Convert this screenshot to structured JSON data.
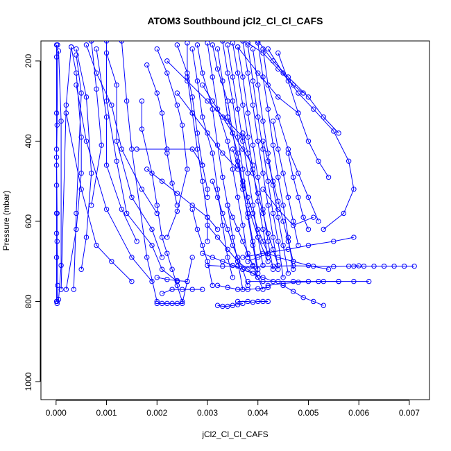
{
  "chart_data": {
    "type": "line",
    "title": "ATOM3 Southbound jCl2_Cl_Cl_CAFS",
    "xlabel": "jCl2_Cl_Cl_CAFS",
    "ylabel": "Pressure (mbar)",
    "xlim": [
      -0.0003,
      0.0074
    ],
    "ylim": [
      1045,
      150
    ],
    "y_reversed": true,
    "x_ticks": [
      0.0,
      0.001,
      0.002,
      0.003,
      0.004,
      0.005,
      0.006,
      0.007
    ],
    "x_tick_labels": [
      "0.000",
      "0.001",
      "0.002",
      "0.003",
      "0.004",
      "0.005",
      "0.006",
      "0.007"
    ],
    "y_ticks": [
      200,
      400,
      600,
      800,
      1000
    ],
    "y_tick_labels": [
      "200",
      "400",
      "600",
      "800",
      "1000"
    ],
    "grid": false,
    "color": "#0000ff",
    "marker": "open-circle",
    "series": [
      {
        "x": [
          1e-05,
          1e-05,
          1e-05,
          1e-05,
          1e-05,
          1e-05,
          1e-05,
          1e-05,
          1e-05,
          1e-05
        ],
        "y": [
          160,
          190,
          330,
          420,
          460,
          510,
          580,
          630,
          690,
          800
        ]
      },
      {
        "x": [
          3e-05,
          2e-05,
          1e-05,
          2e-05,
          2e-05,
          3e-05,
          2e-05
        ],
        "y": [
          160,
          360,
          440,
          580,
          650,
          760,
          800
        ]
      },
      {
        "x": [
          5e-05,
          0.0001,
          0.0001,
          5e-05,
          2e-05
        ],
        "y": [
          175,
          350,
          710,
          795,
          805
        ]
      },
      {
        "x": [
          0.0003,
          0.0002,
          0.0001
        ],
        "y": [
          165,
          310,
          770
        ]
      },
      {
        "x": [
          0.0003,
          0.0004,
          0.0005,
          0.0005,
          0.0004,
          0.0002
        ],
        "y": [
          165,
          230,
          390,
          480,
          620,
          770
        ]
      },
      {
        "x": [
          0.0004,
          0.0005,
          0.0004,
          0.00035
        ],
        "y": [
          185,
          280,
          580,
          770
        ]
      },
      {
        "x": [
          0.0006,
          0.0008,
          0.0011,
          0.0013,
          0.0017,
          0.002
        ],
        "y": [
          160,
          230,
          310,
          420,
          520,
          580
        ]
      },
      {
        "x": [
          0.0004,
          0.0006,
          0.0007,
          0.0006,
          0.0005
        ],
        "y": [
          170,
          290,
          480,
          640,
          720
        ]
      },
      {
        "x": [
          0.0007,
          0.0008,
          0.0009,
          0.0007
        ],
        "y": [
          150,
          270,
          410,
          560
        ]
      },
      {
        "x": [
          0.0008,
          0.001,
          0.001,
          0.0013,
          0.0016
        ],
        "y": [
          170,
          340,
          460,
          570,
          650
        ]
      },
      {
        "x": [
          0.001,
          0.0012,
          0.0012,
          0.0015,
          0.0019,
          0.0021
        ],
        "y": [
          180,
          260,
          400,
          540,
          620,
          690
        ]
      },
      {
        "x": [
          0.001,
          0.001,
          0.0012,
          0.0014,
          0.0019,
          0.0021,
          0.0024
        ],
        "y": [
          150,
          300,
          450,
          580,
          660,
          720,
          750
        ]
      },
      {
        "x": [
          0.0013,
          0.0014,
          0.0015,
          0.0018,
          0.002
        ],
        "y": [
          150,
          300,
          420,
          690,
          800
        ]
      },
      {
        "x": [
          0.0004,
          0.0006,
          0.001,
          0.0015,
          0.0019
        ],
        "y": [
          260,
          400,
          570,
          690,
          750
        ]
      },
      {
        "x": [
          0.0002,
          0.0005,
          0.0008,
          0.0011,
          0.0015
        ],
        "y": [
          330,
          520,
          660,
          700,
          750
        ]
      },
      {
        "x": [
          0.0017,
          0.0017,
          0.0019,
          0.002,
          0.0021,
          0.0022,
          0.0023,
          0.0024,
          0.0025
        ],
        "y": [
          300,
          370,
          480,
          560,
          640,
          680,
          720,
          760,
          800
        ]
      },
      {
        "x": [
          0.0018,
          0.002,
          0.0021,
          0.0022,
          0.0023,
          0.0024
        ],
        "y": [
          210,
          280,
          330,
          430,
          505,
          560
        ]
      },
      {
        "x": [
          0.002,
          0.0022,
          0.0024,
          0.0025,
          0.0026,
          0.0024,
          0.0022
        ],
        "y": [
          170,
          230,
          310,
          360,
          470,
          575,
          640
        ]
      },
      {
        "x": [
          0.002,
          0.0021,
          0.0022,
          0.0023,
          0.0024,
          0.0025,
          0.0026,
          0.0027
        ],
        "y": [
          805,
          805,
          805,
          805,
          805,
          805,
          750,
          690
        ]
      },
      {
        "x": [
          0.0016,
          0.0022,
          0.0027,
          0.0029
        ],
        "y": [
          420,
          420,
          420,
          460
        ]
      },
      {
        "x": [
          0.0024,
          0.0026,
          0.0027,
          0.0028,
          0.0029,
          0.003,
          0.003
        ],
        "y": [
          160,
          230,
          290,
          380,
          460,
          520,
          540
        ]
      },
      {
        "x": [
          0.0026,
          0.0026,
          0.0027,
          0.0028,
          0.0029,
          0.003,
          0.003
        ],
        "y": [
          155,
          240,
          330,
          420,
          500,
          590,
          650
        ]
      },
      {
        "x": [
          0.0027,
          0.0028,
          0.0029,
          0.0031,
          0.0032,
          0.0033,
          0.0034,
          0.0035
        ],
        "y": [
          170,
          250,
          340,
          430,
          520,
          610,
          690,
          740
        ]
      },
      {
        "x": [
          0.0028,
          0.0029,
          0.0031,
          0.0032,
          0.0033,
          0.0034,
          0.0035,
          0.0036,
          0.0037
        ],
        "y": [
          160,
          230,
          320,
          410,
          490,
          560,
          640,
          700,
          770
        ]
      },
      {
        "x": [
          0.003,
          0.0031,
          0.0032,
          0.0034,
          0.0035,
          0.0036,
          0.0037,
          0.0038
        ],
        "y": [
          155,
          240,
          320,
          400,
          470,
          540,
          610,
          690
        ]
      },
      {
        "x": [
          0.0031,
          0.0032,
          0.0034,
          0.0035,
          0.0036,
          0.0037,
          0.0038,
          0.0039,
          0.004
        ],
        "y": [
          160,
          220,
          300,
          380,
          450,
          520,
          580,
          650,
          720
        ]
      },
      {
        "x": [
          0.0032,
          0.0033,
          0.0034,
          0.0036,
          0.0037,
          0.0038,
          0.0039,
          0.004
        ],
        "y": [
          170,
          250,
          340,
          430,
          510,
          590,
          660,
          730
        ]
      },
      {
        "x": [
          0.0033,
          0.0034,
          0.0035,
          0.0036,
          0.0037,
          0.0038,
          0.004,
          0.0042
        ],
        "y": [
          150,
          230,
          300,
          390,
          470,
          560,
          640,
          700
        ]
      },
      {
        "x": [
          0.0034,
          0.0035,
          0.0036,
          0.0037,
          0.0038,
          0.0039,
          0.004,
          0.0041
        ],
        "y": [
          160,
          240,
          320,
          400,
          480,
          560,
          640,
          710
        ]
      },
      {
        "x": [
          0.0035,
          0.0036,
          0.0037,
          0.0038,
          0.0039,
          0.004,
          0.0041,
          0.0042
        ],
        "y": [
          155,
          230,
          310,
          390,
          470,
          550,
          620,
          690
        ]
      },
      {
        "x": [
          0.0036,
          0.0037,
          0.0038,
          0.0039,
          0.004,
          0.0041,
          0.0042,
          0.0043
        ],
        "y": [
          165,
          240,
          330,
          410,
          490,
          570,
          650,
          720
        ]
      },
      {
        "x": [
          0.0037,
          0.0038,
          0.0039,
          0.004,
          0.0041,
          0.0042,
          0.0043,
          0.0044
        ],
        "y": [
          150,
          230,
          310,
          400,
          480,
          560,
          640,
          720
        ]
      },
      {
        "x": [
          0.0038,
          0.0039,
          0.004,
          0.0041,
          0.0042,
          0.0043,
          0.0044,
          0.0045
        ],
        "y": [
          160,
          250,
          340,
          420,
          500,
          580,
          650,
          740
        ]
      },
      {
        "x": [
          0.0039,
          0.004,
          0.0041,
          0.0042,
          0.0043,
          0.0044,
          0.0045,
          0.0046
        ],
        "y": [
          170,
          260,
          350,
          430,
          510,
          590,
          660,
          730
        ]
      },
      {
        "x": [
          0.004,
          0.0041,
          0.0042,
          0.0043,
          0.0044,
          0.0045,
          0.0046,
          0.0047
        ],
        "y": [
          155,
          240,
          320,
          410,
          490,
          560,
          640,
          720
        ]
      },
      {
        "x": [
          0.0041,
          0.0042,
          0.0044,
          0.0046,
          0.0048,
          0.005,
          0.0052
        ],
        "y": [
          170,
          260,
          340,
          420,
          480,
          540,
          600
        ]
      },
      {
        "x": [
          0.0042,
          0.0045,
          0.0048,
          0.0051,
          0.0055,
          0.0058,
          0.0059,
          0.0057,
          0.0053
        ],
        "y": [
          170,
          230,
          280,
          320,
          375,
          450,
          520,
          580,
          620
        ]
      },
      {
        "x": [
          0.004,
          0.0043,
          0.0046,
          0.005,
          0.0053,
          0.0056
        ],
        "y": [
          150,
          200,
          240,
          290,
          340,
          380
        ]
      },
      {
        "x": [
          0.0038,
          0.0041,
          0.0044,
          0.0047,
          0.0049
        ],
        "y": [
          155,
          180,
          220,
          260,
          280
        ]
      },
      {
        "x": [
          0.0036,
          0.004,
          0.0044,
          0.0048
        ],
        "y": [
          165,
          230,
          290,
          330
        ]
      },
      {
        "x": [
          0.0044,
          0.0046,
          0.0048,
          0.005,
          0.0052,
          0.0054
        ],
        "y": [
          180,
          250,
          330,
          400,
          450,
          490
        ]
      },
      {
        "x": [
          0.003,
          0.0033,
          0.0036,
          0.0039,
          0.0043,
          0.0047,
          0.0051,
          0.0055,
          0.0058,
          0.006
        ],
        "y": [
          710,
          712,
          712,
          713,
          712,
          711,
          712,
          713,
          712,
          711
        ]
      },
      {
        "x": [
          0.0059,
          0.0061,
          0.0063,
          0.0065,
          0.0067,
          0.0069,
          0.0071
        ],
        "y": [
          712,
          712,
          712,
          712,
          712,
          712,
          712
        ]
      },
      {
        "x": [
          0.0038,
          0.0041,
          0.0044,
          0.0047,
          0.005,
          0.0053,
          0.0056,
          0.0059,
          0.0062
        ],
        "y": [
          750,
          750,
          750,
          750,
          750,
          750,
          750,
          750,
          750
        ]
      },
      {
        "x": [
          0.0042,
          0.0045,
          0.0048,
          0.0052,
          0.0056
        ],
        "y": [
          760,
          755,
          752,
          750,
          750
        ]
      },
      {
        "x": [
          0.0037,
          0.0041,
          0.0046,
          0.005,
          0.0055,
          0.0059
        ],
        "y": [
          690,
          680,
          670,
          660,
          650,
          640
        ]
      },
      {
        "x": [
          0.0038,
          0.004,
          0.0042,
          0.0044,
          0.0047,
          0.005,
          0.0054
        ],
        "y": [
          700,
          690,
          680,
          690,
          700,
          710,
          720
        ]
      },
      {
        "x": [
          0.0045,
          0.0047,
          0.0049,
          0.0051,
          0.0053
        ],
        "y": [
          760,
          775,
          790,
          800,
          810
        ]
      },
      {
        "x": [
          0.0032,
          0.0033,
          0.0034,
          0.0035,
          0.0036,
          0.0037
        ],
        "y": [
          810,
          812,
          812,
          810,
          808,
          805
        ]
      },
      {
        "x": [
          0.0036,
          0.0038,
          0.0039,
          0.004,
          0.0041,
          0.0042
        ],
        "y": [
          800,
          800,
          802,
          800,
          800,
          800
        ]
      },
      {
        "x": [
          0.0034,
          0.0035,
          0.0036,
          0.0037,
          0.0038,
          0.0039,
          0.004,
          0.0041
        ],
        "y": [
          560,
          590,
          620,
          650,
          680,
          710,
          740,
          770
        ]
      },
      {
        "x": [
          0.003,
          0.0032,
          0.0034,
          0.0036,
          0.0038,
          0.004
        ],
        "y": [
          610,
          640,
          670,
          700,
          720,
          740
        ]
      },
      {
        "x": [
          0.0029,
          0.0031,
          0.0033,
          0.0035,
          0.0037,
          0.0039,
          0.0041,
          0.0043
        ],
        "y": [
          680,
          690,
          700,
          710,
          720,
          730,
          740,
          750
        ]
      },
      {
        "x": [
          0.0031,
          0.0032,
          0.0033,
          0.0034,
          0.0035,
          0.0036,
          0.0037,
          0.0038
        ],
        "y": [
          500,
          540,
          580,
          620,
          660,
          690,
          720,
          760
        ]
      },
      {
        "x": [
          0.0035,
          0.0036,
          0.0037,
          0.0038,
          0.0039,
          0.004,
          0.0041,
          0.0042
        ],
        "y": [
          420,
          460,
          500,
          540,
          580,
          620,
          650,
          680
        ]
      },
      {
        "x": [
          0.0037,
          0.0038,
          0.0039,
          0.004,
          0.0041,
          0.0042,
          0.0043,
          0.0044
        ],
        "y": [
          380,
          430,
          480,
          530,
          580,
          630,
          670,
          710
        ]
      },
      {
        "x": [
          0.0041,
          0.0042,
          0.0043,
          0.0044,
          0.0045,
          0.0046,
          0.0047
        ],
        "y": [
          400,
          450,
          500,
          550,
          600,
          650,
          700
        ]
      },
      {
        "x": [
          0.0043,
          0.0044,
          0.0045,
          0.0046,
          0.0047,
          0.0048
        ],
        "y": [
          350,
          420,
          480,
          540,
          600,
          660
        ]
      },
      {
        "x": [
          0.0046,
          0.0047,
          0.0048,
          0.0049,
          0.005
        ],
        "y": [
          430,
          490,
          540,
          590,
          620
        ]
      },
      {
        "x": [
          0.0041,
          0.0044,
          0.0047,
          0.0051
        ],
        "y": [
          520,
          570,
          610,
          590
        ]
      },
      {
        "x": [
          0.0024,
          0.0027,
          0.003,
          0.0033,
          0.0036
        ],
        "y": [
          280,
          330,
          380,
          430,
          470
        ]
      },
      {
        "x": [
          0.0022,
          0.0026,
          0.003,
          0.0034,
          0.0037
        ],
        "y": [
          200,
          250,
          300,
          350,
          390
        ]
      },
      {
        "x": [
          0.0029,
          0.0031,
          0.0033,
          0.0035,
          0.0037,
          0.0039
        ],
        "y": [
          260,
          300,
          340,
          380,
          420,
          460
        ]
      },
      {
        "x": [
          0.0018,
          0.0021,
          0.0024,
          0.0027,
          0.003,
          0.0032
        ],
        "y": [
          470,
          500,
          530,
          560,
          590,
          620
        ]
      },
      {
        "x": [
          0.002,
          0.0022,
          0.0024,
          0.0026
        ],
        "y": [
          740,
          745,
          748,
          750
        ]
      },
      {
        "x": [
          0.0027,
          0.0028,
          0.0029,
          0.003,
          0.0031
        ],
        "y": [
          570,
          620,
          660,
          700,
          760
        ]
      },
      {
        "x": [
          0.0032,
          0.0034,
          0.0036,
          0.0038,
          0.004,
          0.0042
        ],
        "y": [
          760,
          765,
          770,
          770,
          768,
          765
        ]
      },
      {
        "x": [
          0.0021,
          0.0023,
          0.0025,
          0.0027,
          0.0029
        ],
        "y": [
          780,
          770,
          770,
          770,
          770
        ]
      }
    ]
  }
}
